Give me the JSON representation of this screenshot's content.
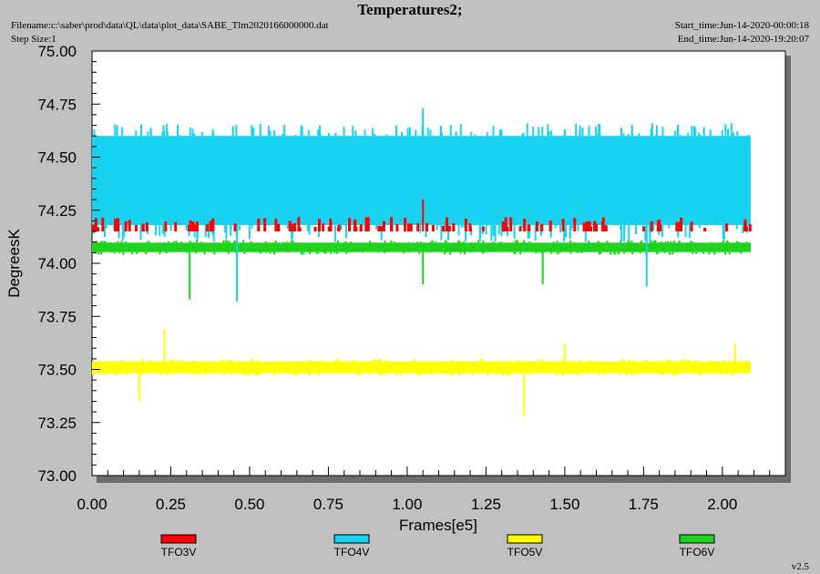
{
  "header": {
    "title": "Temperatures2;",
    "filename": "Filename:c:\\saber\\prod\\data\\QL\\data\\plot_data\\SABE_Tlm2020166000000.dat",
    "step_size": "Step Size:1",
    "start_time": "Start_time:Jun-14-2020-00:00:18",
    "end_time": "End_time:Jun-14-2020-19:20:07"
  },
  "version": "v2.5",
  "chart_data": {
    "type": "line",
    "xlabel": "Frames[e5]",
    "ylabel": "DegreesK",
    "xlim": [
      0,
      2.2
    ],
    "ylim": [
      73.0,
      75.0
    ],
    "x_ticks": [
      "0.00",
      "0.25",
      "0.50",
      "0.75",
      "1.00",
      "1.25",
      "1.50",
      "1.75",
      "2.00"
    ],
    "y_ticks": [
      "73.00",
      "73.25",
      "73.50",
      "73.75",
      "74.00",
      "74.25",
      "74.50",
      "74.75",
      "75.00"
    ],
    "grid": false,
    "legend_position": "bottom",
    "series": [
      {
        "name": "TFO3V",
        "color": "#ff0000",
        "x_range": [
          0.0,
          2.09
        ],
        "baseline": 74.15,
        "spread": [
          74.1,
          74.25
        ],
        "spikes": [
          {
            "x": 1.05,
            "y": 74.3
          }
        ]
      },
      {
        "name": "TFO4V",
        "color": "#19d2f0",
        "x_range": [
          0.0,
          2.09
        ],
        "baseline": 74.38,
        "spread": [
          74.1,
          74.66
        ],
        "spikes": [
          {
            "x": 1.05,
            "y": 74.73
          },
          {
            "x": 0.46,
            "y": 73.82
          },
          {
            "x": 1.76,
            "y": 73.89
          }
        ]
      },
      {
        "name": "TFO5V",
        "color": "#ffff00",
        "x_range": [
          0.0,
          2.09
        ],
        "baseline": 73.51,
        "spread": [
          73.47,
          73.55
        ],
        "spikes": [
          {
            "x": 0.23,
            "y": 73.69
          },
          {
            "x": 1.5,
            "y": 73.62
          },
          {
            "x": 2.04,
            "y": 73.62
          },
          {
            "x": 1.37,
            "y": 73.28
          },
          {
            "x": 0.15,
            "y": 73.35
          }
        ]
      },
      {
        "name": "TFO6V",
        "color": "#1ed21e",
        "x_range": [
          0.0,
          2.09
        ],
        "baseline": 74.07,
        "spread": [
          74.04,
          74.11
        ],
        "spikes": [
          {
            "x": 0.31,
            "y": 73.83
          },
          {
            "x": 1.05,
            "y": 73.9
          },
          {
            "x": 1.43,
            "y": 73.9
          }
        ]
      }
    ]
  }
}
